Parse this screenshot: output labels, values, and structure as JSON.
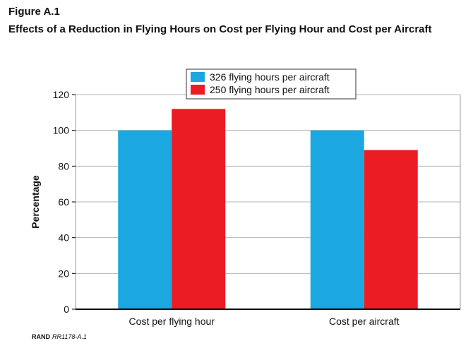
{
  "figure": {
    "label": "Figure A.1",
    "title": "Effects of a Reduction in Flying Hours on Cost per Flying Hour and Cost per Aircraft",
    "credit_org": "RAND",
    "credit_code": "RR1178-A.1"
  },
  "chart_data": {
    "type": "bar",
    "categories": [
      "Cost per flying hour",
      "Cost per aircraft"
    ],
    "series": [
      {
        "name": "326 flying hours per aircraft",
        "values": [
          100,
          100
        ],
        "color": "#1ba7e0"
      },
      {
        "name": "250 flying hours per aircraft",
        "values": [
          112,
          89
        ],
        "color": "#ec1c24"
      }
    ],
    "xlabel": "",
    "ylabel": "Percentage",
    "ylim": [
      0,
      120
    ],
    "yticks": [
      0,
      20,
      40,
      60,
      80,
      100,
      120
    ],
    "grid": true,
    "legend_position": "top-center"
  }
}
